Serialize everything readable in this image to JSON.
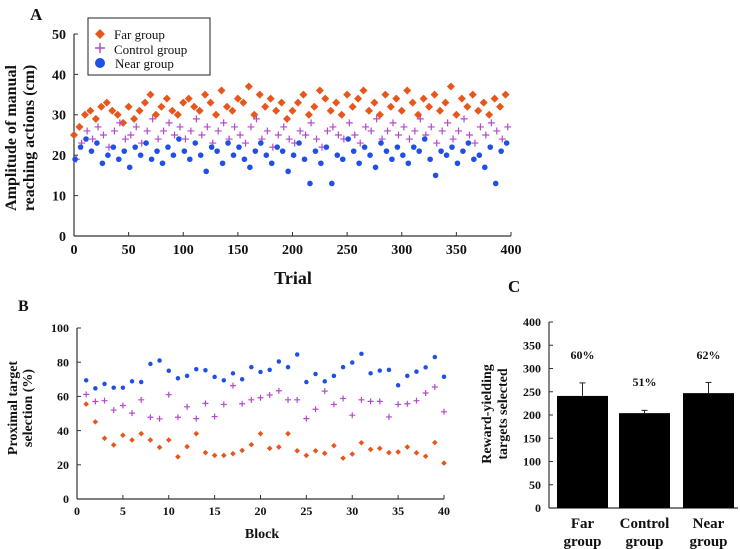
{
  "colors": {
    "far": "#e8561c",
    "control": "#b548cf",
    "near": "#1f4fe6",
    "bar": "#000000"
  },
  "chart_data": [
    {
      "panel": "A",
      "type": "scatter",
      "xlabel": "Trial",
      "ylabel_lines": [
        "Amplitude of manual",
        "reaching actions (cm)"
      ],
      "xlim": [
        0,
        400
      ],
      "ylim": [
        0,
        50
      ],
      "xticks": [
        "0",
        "50",
        "100",
        "150",
        "200",
        "250",
        "300",
        "350",
        "400"
      ],
      "yticks": [
        "0",
        "10",
        "20",
        "30",
        "40",
        "50"
      ],
      "legend": {
        "placement": "top-left",
        "entries": [
          "Far group",
          "Control group",
          "Near group"
        ]
      },
      "x_step": 5,
      "series": [
        {
          "name": "Far group",
          "marker": "diamond",
          "values": [
            25,
            27,
            30,
            31,
            29,
            32,
            33,
            31,
            30,
            28,
            32,
            29,
            31,
            33,
            35,
            30,
            32,
            34,
            31,
            30,
            33,
            34,
            32,
            31,
            35,
            33,
            30,
            36,
            32,
            31,
            34,
            33,
            37,
            30,
            35,
            32,
            34,
            31,
            33,
            29,
            31,
            33,
            35,
            30,
            32,
            36,
            34,
            31,
            33,
            30,
            35,
            32,
            34,
            36,
            31,
            33,
            30,
            35,
            32,
            34,
            31,
            36,
            33,
            30,
            34,
            32,
            35,
            31,
            33,
            37,
            30,
            34,
            32,
            35,
            31,
            33,
            30,
            34,
            32,
            35
          ]
        },
        {
          "name": "Control group",
          "marker": "plus",
          "values": [
            19,
            23,
            26,
            24,
            27,
            25,
            22,
            26,
            28,
            24,
            25,
            27,
            23,
            26,
            29,
            24,
            26,
            28,
            25,
            27,
            24,
            26,
            29,
            25,
            27,
            23,
            26,
            28,
            24,
            27,
            25,
            23,
            27,
            29,
            24,
            26,
            22,
            25,
            27,
            24,
            23,
            26,
            25,
            28,
            24,
            22,
            26,
            27,
            25,
            24,
            28,
            25,
            23,
            27,
            26,
            29,
            24,
            26,
            28,
            25,
            27,
            24,
            26,
            29,
            25,
            27,
            23,
            26,
            28,
            24,
            26,
            29,
            25,
            23,
            27,
            25,
            28,
            26,
            24,
            27
          ]
        },
        {
          "name": "Near group",
          "marker": "circle",
          "values": [
            19,
            22,
            24,
            21,
            23,
            18,
            20,
            22,
            19,
            21,
            17,
            22,
            20,
            23,
            19,
            21,
            18,
            22,
            20,
            24,
            21,
            19,
            23,
            20,
            16,
            22,
            21,
            18,
            23,
            20,
            22,
            19,
            17,
            21,
            23,
            20,
            18,
            22,
            21,
            16,
            20,
            23,
            19,
            13,
            21,
            18,
            22,
            13,
            20,
            19,
            24,
            21,
            18,
            22,
            20,
            17,
            23,
            21,
            19,
            22,
            20,
            18,
            22,
            21,
            24,
            19,
            15,
            21,
            20,
            22,
            18,
            21,
            23,
            19,
            20,
            17,
            22,
            13,
            21,
            23
          ]
        }
      ]
    },
    {
      "panel": "B",
      "type": "scatter",
      "xlabel": "Block",
      "ylabel_lines": [
        "Proximal target",
        "selection (%)"
      ],
      "xlim": [
        0,
        40
      ],
      "ylim": [
        0,
        100
      ],
      "xticks": [
        "0",
        "5",
        "10",
        "15",
        "20",
        "25",
        "30",
        "35",
        "40"
      ],
      "yticks": [
        "0",
        "20",
        "40",
        "60",
        "80",
        "100"
      ],
      "series": [
        {
          "name": "Near group",
          "marker": "circle",
          "values": [
            69.4,
            64.7,
            67.3,
            65.1,
            65.1,
            68.8,
            68.4,
            79,
            81,
            75,
            70.6,
            72,
            75.9,
            75.3,
            71.4,
            69.4,
            73.5,
            70,
            77.1,
            74.3,
            75.5,
            80.4,
            77.1,
            84.5,
            68.4,
            73.1,
            68.8,
            72,
            77.1,
            79.8,
            84.9,
            73.5,
            75.1,
            75.5,
            66.5,
            72,
            74.5,
            77,
            83,
            71.5
          ]
        },
        {
          "name": "Control group",
          "marker": "plus",
          "values": [
            61.2,
            57,
            57.5,
            52,
            54.7,
            50.2,
            58,
            47.8,
            46.9,
            61,
            47.8,
            53.9,
            47,
            55.9,
            48.2,
            55.3,
            66.3,
            55.7,
            58,
            59.2,
            60.8,
            63.3,
            58,
            58,
            47,
            52.5,
            63.1,
            55.3,
            58.8,
            49,
            58,
            57.1,
            57.1,
            48,
            55.3,
            55.7,
            57.5,
            62,
            65.5,
            51
          ]
        },
        {
          "name": "Far group",
          "marker": "diamond",
          "values": [
            55.5,
            45.1,
            35.5,
            31.6,
            37.3,
            34.5,
            38.2,
            34.5,
            30.2,
            34.5,
            24.7,
            30.6,
            38.2,
            27.1,
            25.5,
            25.5,
            26.5,
            28.4,
            31.8,
            38.2,
            29.6,
            30.4,
            38.2,
            28.2,
            25.5,
            28.2,
            26.7,
            31.2,
            23.9,
            26.3,
            32.9,
            29,
            29.6,
            27.1,
            27.5,
            30.4,
            27,
            25,
            33,
            21
          ]
        }
      ]
    },
    {
      "panel": "C",
      "type": "bar",
      "ylabel_lines": [
        "Reward-yielding",
        "targets selected"
      ],
      "ylim": [
        0,
        400
      ],
      "yticks": [
        "0",
        "50",
        "100",
        "150",
        "200",
        "250",
        "300",
        "350",
        "400"
      ],
      "categories": [
        [
          "Far",
          "group"
        ],
        [
          "Control",
          "group"
        ],
        [
          "Near",
          "group"
        ]
      ],
      "values": [
        241,
        204,
        247
      ],
      "errors": [
        28,
        6,
        23
      ],
      "annotations": [
        "60%",
        "51%",
        "62%"
      ]
    }
  ]
}
